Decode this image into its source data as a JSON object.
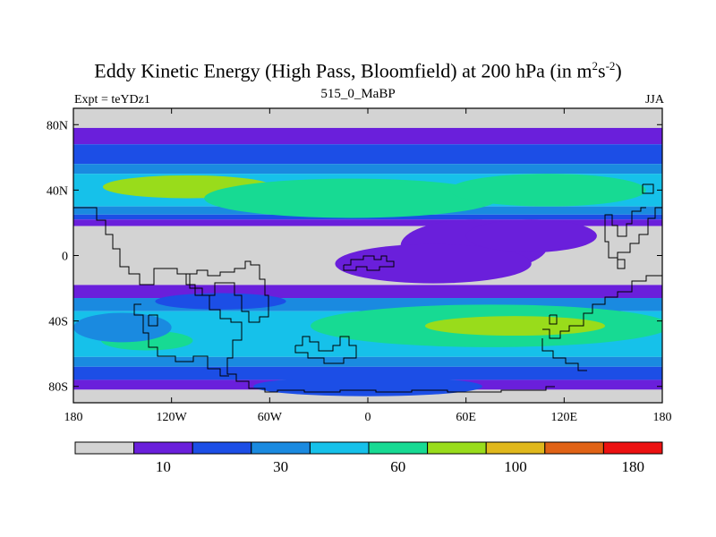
{
  "header": {
    "title_prefix": "Eddy Kinetic Energy (High Pass, Bloomfield) at 200 hPa (in m",
    "title_sup1": "2",
    "title_mid": "s",
    "title_sup2": "-2",
    "title_suffix": ")",
    "subtitle": "515_0_MaBP",
    "left_label": "Expt = teYDz1",
    "right_label": "JJA"
  },
  "chart_data": {
    "type": "heatmap",
    "title": "Eddy Kinetic Energy (High Pass, Bloomfield) at 200 hPa (in m^2 s^-2)",
    "subtitle": "515_0_MaBP",
    "x_ticks": [
      "180",
      "120W",
      "60W",
      "0",
      "60E",
      "120E",
      "180"
    ],
    "x_tick_values": [
      -180,
      -120,
      -60,
      0,
      60,
      120,
      180
    ],
    "y_ticks": [
      "80N",
      "40N",
      "0",
      "40S",
      "80S"
    ],
    "y_tick_values": [
      80,
      40,
      0,
      -40,
      -80
    ],
    "xlim": [
      -180,
      180
    ],
    "ylim": [
      -90,
      90
    ],
    "contour_levels": [
      10,
      20,
      30,
      45,
      60,
      80,
      100,
      140,
      180
    ],
    "colorbar": {
      "colors": [
        "#d3d3d3",
        "#6a1fdb",
        "#1c4ee6",
        "#1a8ae0",
        "#16c1ea",
        "#17da93",
        "#99dc1b",
        "#e0b81c",
        "#e06215",
        "#ec1111"
      ],
      "labels": [
        "10",
        "30",
        "60",
        "100",
        "180"
      ],
      "label_boundaries": [
        1,
        3,
        5,
        7,
        9
      ]
    },
    "lat_bands": [
      {
        "lat_from": 90,
        "lat_to": 78,
        "level_index": 0
      },
      {
        "lat_from": 78,
        "lat_to": 68,
        "level_index": 1
      },
      {
        "lat_from": 68,
        "lat_to": 56,
        "level_index": 2
      },
      {
        "lat_from": 56,
        "lat_to": 50,
        "level_index": 3
      },
      {
        "lat_from": 50,
        "lat_to": 30,
        "level_index": 4
      },
      {
        "lat_from": 30,
        "lat_to": 25,
        "level_index": 3
      },
      {
        "lat_from": 25,
        "lat_to": 22,
        "level_index": 2
      },
      {
        "lat_from": 22,
        "lat_to": 18,
        "level_index": 1
      },
      {
        "lat_from": 18,
        "lat_to": -18,
        "level_index": 0
      },
      {
        "lat_from": -18,
        "lat_to": -26,
        "level_index": 1
      },
      {
        "lat_from": -26,
        "lat_to": -34,
        "level_index": 3
      },
      {
        "lat_from": -34,
        "lat_to": -62,
        "level_index": 4
      },
      {
        "lat_from": -62,
        "lat_to": -68,
        "level_index": 3
      },
      {
        "lat_from": -68,
        "lat_to": -76,
        "level_index": 2
      },
      {
        "lat_from": -76,
        "lat_to": -82,
        "level_index": 1
      },
      {
        "lat_from": -82,
        "lat_to": -90,
        "level_index": 0
      }
    ],
    "blobs": [
      {
        "lon": -110,
        "lat": 42,
        "rlon": 52,
        "rlat": 7,
        "level_index": 6
      },
      {
        "lon": 130,
        "lat": 41,
        "rlon": 16,
        "rlat": 3,
        "level_index": 6
      },
      {
        "lon": -10,
        "lat": 35,
        "rlon": 90,
        "rlat": 12,
        "level_index": 5
      },
      {
        "lon": 110,
        "lat": 40,
        "rlon": 60,
        "rlat": 10,
        "level_index": 5
      },
      {
        "lon": 65,
        "lat": 6,
        "rlon": 45,
        "rlat": 16,
        "level_index": 1
      },
      {
        "lon": 40,
        "lat": -5,
        "rlon": 60,
        "rlat": 12,
        "level_index": 1
      },
      {
        "lon": 100,
        "lat": 12,
        "rlon": 40,
        "rlat": 10,
        "level_index": 1
      },
      {
        "lon": 75,
        "lat": -43,
        "rlon": 110,
        "rlat": 13,
        "level_index": 5
      },
      {
        "lon": 90,
        "lat": -43,
        "rlon": 55,
        "rlat": 6,
        "level_index": 6
      },
      {
        "lon": -135,
        "lat": -52,
        "rlon": 28,
        "rlat": 6,
        "level_index": 5
      },
      {
        "lon": -150,
        "lat": -44,
        "rlon": 30,
        "rlat": 9,
        "level_index": 3
      },
      {
        "lon": 0,
        "lat": -80,
        "rlon": 70,
        "rlat": 6,
        "level_index": 2
      },
      {
        "lon": -90,
        "lat": -28,
        "rlon": 40,
        "rlat": 5,
        "level_index": 2
      }
    ]
  }
}
